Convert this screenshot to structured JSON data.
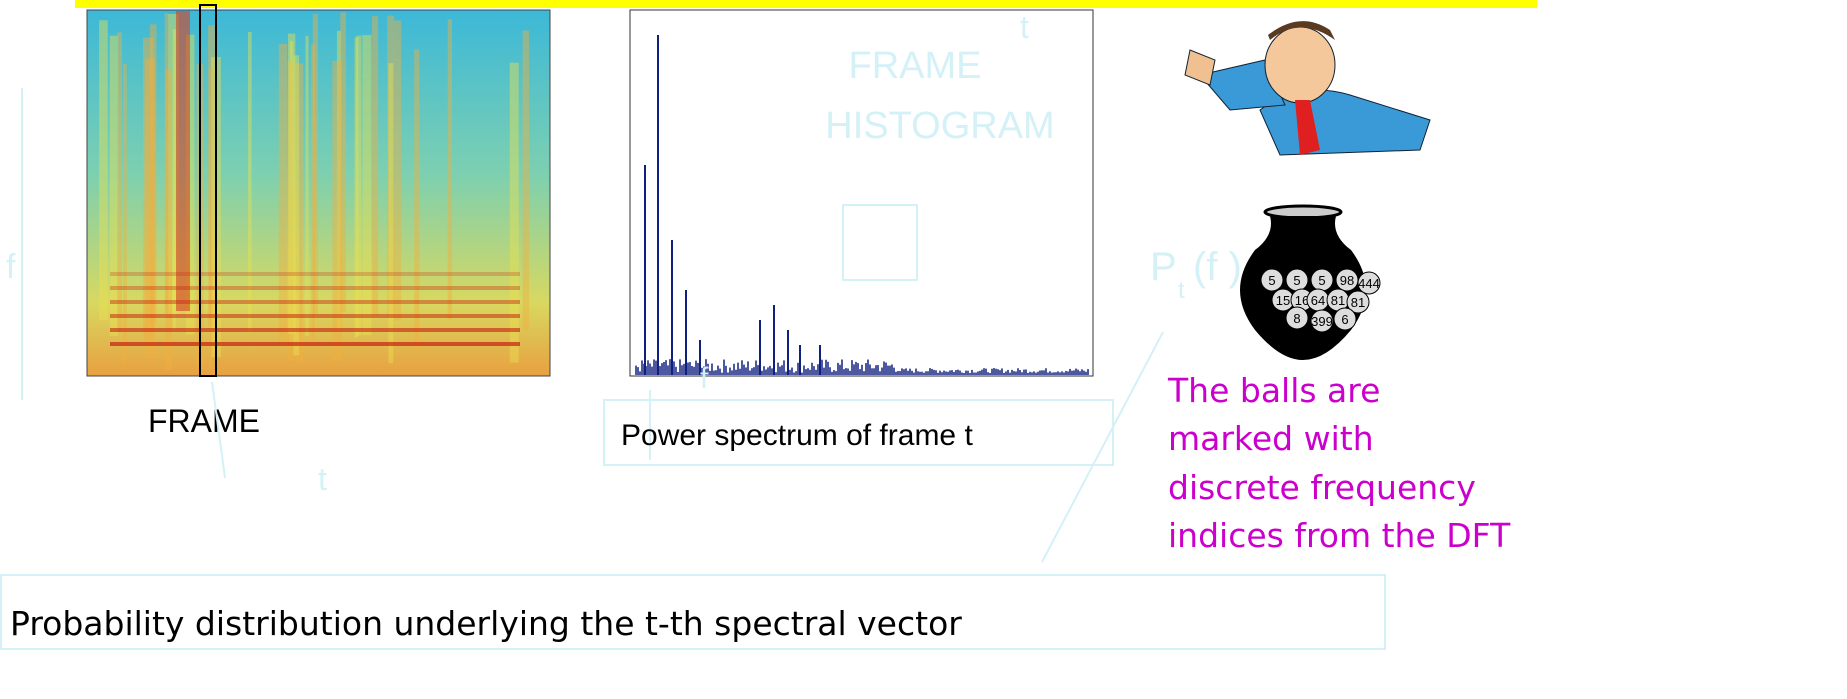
{
  "spectrogram": {
    "caption": "FRAME",
    "t_label": "t",
    "f_label": "f"
  },
  "spectrum": {
    "watermark": [
      "FRAME",
      "HISTOGRAM"
    ],
    "t_label": "t",
    "f_label": "f",
    "caption": "Power spectrum of frame t"
  },
  "urn": {
    "balls": [
      "5",
      "5",
      "5",
      "98",
      "444",
      "15",
      "16",
      "64",
      "81",
      "81",
      "8",
      "399",
      "6"
    ],
    "label": {
      "symbol": "P",
      "subscript": "t",
      "argument": "(f )"
    }
  },
  "note": [
    "The balls are",
    "marked with",
    "discrete frequency",
    "indices from the DFT"
  ],
  "footer": "Probability distribution underlying the t-th spectral vector"
}
